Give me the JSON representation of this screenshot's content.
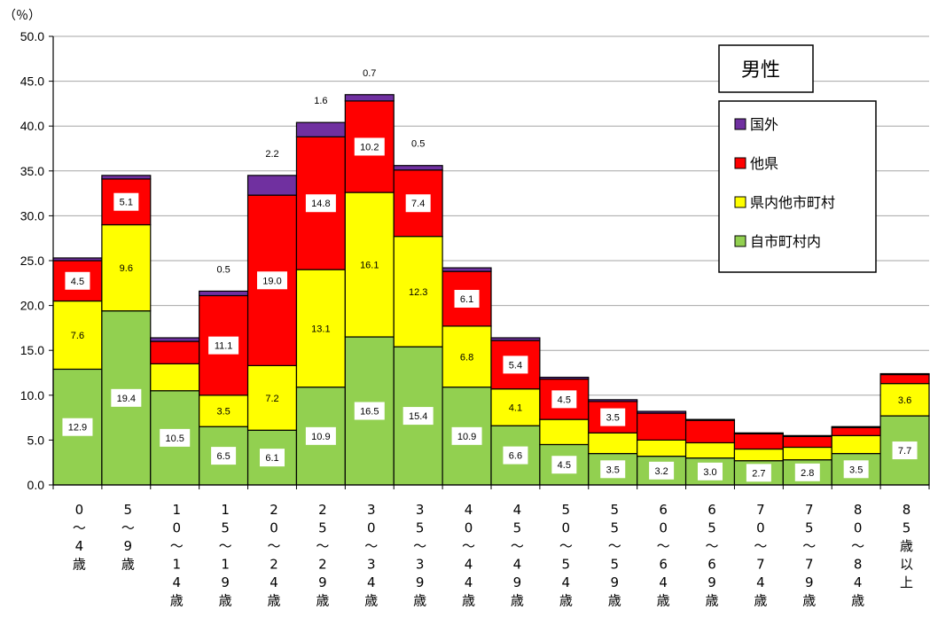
{
  "chart_data": {
    "type": "bar",
    "stacked": true,
    "y_unit": "（％）",
    "ylim": [
      0,
      50
    ],
    "ytick_step": 5,
    "ytick_labels": [
      "0.0",
      "5.0",
      "10.0",
      "15.0",
      "20.0",
      "25.0",
      "30.0",
      "35.0",
      "40.0",
      "45.0",
      "50.0"
    ],
    "grid": true,
    "categories": [
      "0～4歳",
      "5～9歳",
      "10～14歳",
      "15～19歳",
      "20～24歳",
      "25～29歳",
      "30～34歳",
      "35～39歳",
      "40～44歳",
      "45～49歳",
      "50～54歳",
      "55～59歳",
      "60～64歳",
      "65～69歳",
      "70～74歳",
      "75～79歳",
      "80～84歳",
      "85歳以上"
    ],
    "category_labels": [
      [
        "0",
        "～",
        "4",
        "歳"
      ],
      [
        "5",
        "～",
        "9",
        "歳"
      ],
      [
        "1",
        "0",
        "～",
        "1",
        "4",
        "歳"
      ],
      [
        "1",
        "5",
        "～",
        "1",
        "9",
        "歳"
      ],
      [
        "2",
        "0",
        "～",
        "2",
        "4",
        "歳"
      ],
      [
        "2",
        "5",
        "～",
        "2",
        "9",
        "歳"
      ],
      [
        "3",
        "0",
        "～",
        "3",
        "4",
        "歳"
      ],
      [
        "3",
        "5",
        "～",
        "3",
        "9",
        "歳"
      ],
      [
        "4",
        "0",
        "～",
        "4",
        "4",
        "歳"
      ],
      [
        "4",
        "5",
        "～",
        "4",
        "9",
        "歳"
      ],
      [
        "5",
        "0",
        "～",
        "5",
        "4",
        "歳"
      ],
      [
        "5",
        "5",
        "～",
        "5",
        "9",
        "歳"
      ],
      [
        "6",
        "0",
        "～",
        "6",
        "4",
        "歳"
      ],
      [
        "6",
        "5",
        "～",
        "6",
        "9",
        "歳"
      ],
      [
        "7",
        "0",
        "～",
        "7",
        "4",
        "歳"
      ],
      [
        "7",
        "5",
        "～",
        "7",
        "9",
        "歳"
      ],
      [
        "8",
        "0",
        "～",
        "8",
        "4",
        "歳"
      ],
      [
        "8",
        "5",
        "歳",
        "以",
        "上"
      ]
    ],
    "series": [
      {
        "name": "自市町村内",
        "color": "#92d050",
        "values": [
          12.9,
          19.4,
          10.5,
          6.5,
          6.1,
          10.9,
          16.5,
          15.4,
          10.9,
          6.6,
          4.5,
          3.5,
          3.2,
          3.0,
          2.7,
          2.8,
          3.5,
          7.7
        ]
      },
      {
        "name": "県内他市町村",
        "color": "#ffff00",
        "values": [
          7.6,
          9.6,
          3.0,
          3.5,
          7.2,
          13.1,
          16.1,
          12.3,
          6.8,
          4.1,
          2.8,
          2.3,
          1.8,
          1.7,
          1.3,
          1.4,
          2.0,
          3.6
        ]
      },
      {
        "name": "他県",
        "color": "#ff0000",
        "values": [
          4.5,
          5.1,
          2.5,
          11.1,
          19.0,
          14.8,
          10.2,
          7.4,
          6.1,
          5.4,
          4.5,
          3.5,
          3.0,
          2.5,
          1.7,
          1.2,
          0.9,
          1.0
        ]
      },
      {
        "name": "国外",
        "color": "#7030a0",
        "values": [
          0.3,
          0.4,
          0.4,
          0.5,
          2.2,
          1.6,
          0.7,
          0.5,
          0.4,
          0.3,
          0.2,
          0.2,
          0.2,
          0.1,
          0.1,
          0.1,
          0.1,
          0.1
        ]
      }
    ],
    "data_labels": [
      [
        {
          "s": 0,
          "t": "12.9"
        },
        {
          "s": 1,
          "t": "7.6"
        },
        {
          "s": 2,
          "t": "4.5"
        }
      ],
      [
        {
          "s": 0,
          "t": "19.4"
        },
        {
          "s": 1,
          "t": "9.6"
        },
        {
          "s": 2,
          "t": "5.1"
        }
      ],
      [
        {
          "s": 0,
          "t": "10.5"
        }
      ],
      [
        {
          "s": 0,
          "t": "6.5"
        },
        {
          "s": 1,
          "t": "3.5"
        },
        {
          "s": 2,
          "t": "11.1"
        },
        {
          "s": 3,
          "t": "0.5",
          "above": true
        }
      ],
      [
        {
          "s": 0,
          "t": "6.1"
        },
        {
          "s": 1,
          "t": "7.2"
        },
        {
          "s": 2,
          "t": "19.0"
        },
        {
          "s": 3,
          "t": "2.2",
          "above": true
        }
      ],
      [
        {
          "s": 0,
          "t": "10.9"
        },
        {
          "s": 1,
          "t": "13.1"
        },
        {
          "s": 2,
          "t": "14.8"
        },
        {
          "s": 3,
          "t": "1.6",
          "above": true
        }
      ],
      [
        {
          "s": 0,
          "t": "16.5"
        },
        {
          "s": 1,
          "t": "16.1"
        },
        {
          "s": 2,
          "t": "10.2"
        },
        {
          "s": 3,
          "t": "0.7",
          "above": true
        }
      ],
      [
        {
          "s": 0,
          "t": "15.4"
        },
        {
          "s": 1,
          "t": "12.3"
        },
        {
          "s": 2,
          "t": "7.4"
        },
        {
          "s": 3,
          "t": "0.5",
          "above": true
        }
      ],
      [
        {
          "s": 0,
          "t": "10.9"
        },
        {
          "s": 1,
          "t": "6.8"
        },
        {
          "s": 2,
          "t": "6.1"
        }
      ],
      [
        {
          "s": 0,
          "t": "6.6"
        },
        {
          "s": 1,
          "t": "4.1"
        },
        {
          "s": 2,
          "t": "5.4"
        }
      ],
      [
        {
          "s": 0,
          "t": "4.5"
        },
        {
          "s": 2,
          "t": "4.5"
        }
      ],
      [
        {
          "s": 0,
          "t": "3.5"
        },
        {
          "s": 2,
          "t": "3.5"
        }
      ],
      [
        {
          "s": 0,
          "t": "3.2"
        }
      ],
      [
        {
          "s": 0,
          "t": "3.0"
        }
      ],
      [
        {
          "s": 0,
          "t": "2.7"
        }
      ],
      [
        {
          "s": 0,
          "t": "2.8"
        }
      ],
      [
        {
          "s": 0,
          "t": "3.5"
        }
      ],
      [
        {
          "s": 0,
          "t": "7.7"
        },
        {
          "s": 1,
          "t": "3.6"
        }
      ]
    ],
    "legend": {
      "title": "男性",
      "placement": "top-right",
      "order": [
        3,
        2,
        1,
        0
      ]
    }
  }
}
